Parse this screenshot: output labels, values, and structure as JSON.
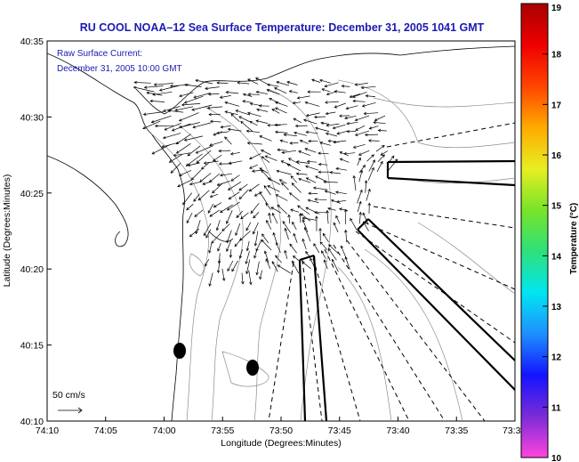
{
  "chart_data": {
    "type": "vector-field-map",
    "title": "RU COOL  NOAA–12  Sea Surface Temperature:  December 31, 2005 1041 GMT",
    "annotation": {
      "label": "Raw Surface Current:",
      "time": "December 31, 2005 10:00 GMT"
    },
    "xlabel": "Longitude (Degrees:Minutes)",
    "ylabel": "Latitude (Degrees:Minutes)",
    "x_ticks": [
      "74:10",
      "74:05",
      "74:00",
      "73:55",
      "73:50",
      "73:45",
      "73:40",
      "73:35",
      "73:3"
    ],
    "y_ticks": [
      "40:35",
      "40:30",
      "40:25",
      "40:20",
      "40:15",
      "40:10"
    ],
    "scale_label": "50 cm/s",
    "colorbar": {
      "label": "Temperature (°C)",
      "ticks": [
        "19",
        "18",
        "17",
        "16",
        "15",
        "14",
        "13",
        "12",
        "11",
        "10"
      ],
      "colors": [
        "#ff44dd",
        "#7a2bd8",
        "#1414ff",
        "#1e90ff",
        "#00e6f0",
        "#2ee07a",
        "#78e428",
        "#e8ee22",
        "#ffaa00",
        "#ff4400",
        "#ee0000",
        "#a80000"
      ]
    },
    "current_field": {
      "description": "Surface current vectors over the New York Bight apex; strong westward/southwestward flow near Sandy Hook region, eastward flow offshore.",
      "vector_count_estimate": 450
    }
  }
}
